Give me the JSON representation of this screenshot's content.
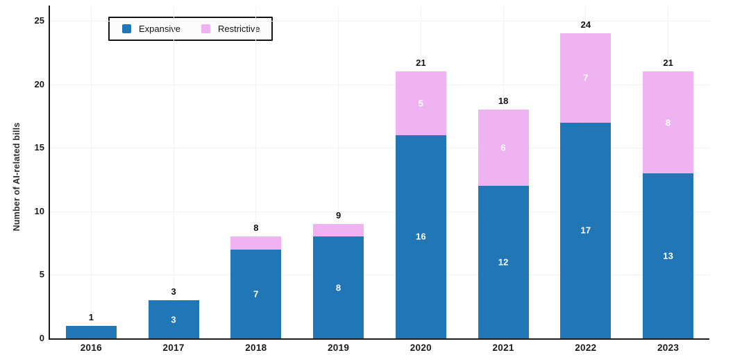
{
  "chart_data": {
    "type": "bar",
    "stacked": true,
    "categories": [
      "2016",
      "2017",
      "2018",
      "2019",
      "2020",
      "2021",
      "2022",
      "2023"
    ],
    "series": [
      {
        "name": "Expansive",
        "color": "#2176b5",
        "values": [
          1,
          3,
          7,
          8,
          16,
          12,
          17,
          13
        ]
      },
      {
        "name": "Restrictive",
        "color": "#eeb3f0",
        "values": [
          0,
          0,
          1,
          1,
          5,
          6,
          7,
          8
        ]
      }
    ],
    "totals": [
      1,
      3,
      8,
      9,
      21,
      18,
      24,
      21
    ],
    "title": "",
    "xlabel": "",
    "ylabel": "Number of AI-related bills",
    "yticks": [
      0,
      5,
      10,
      15,
      20,
      25
    ],
    "ylim": [
      0,
      25
    ],
    "grid": true,
    "legend_position": "top-left",
    "segment_label_min": 2,
    "segment_label_color": "#ffffff",
    "total_label_color": "#111111",
    "axis_color": "#1a1a1a",
    "grid_color": "#f2f2f2"
  }
}
